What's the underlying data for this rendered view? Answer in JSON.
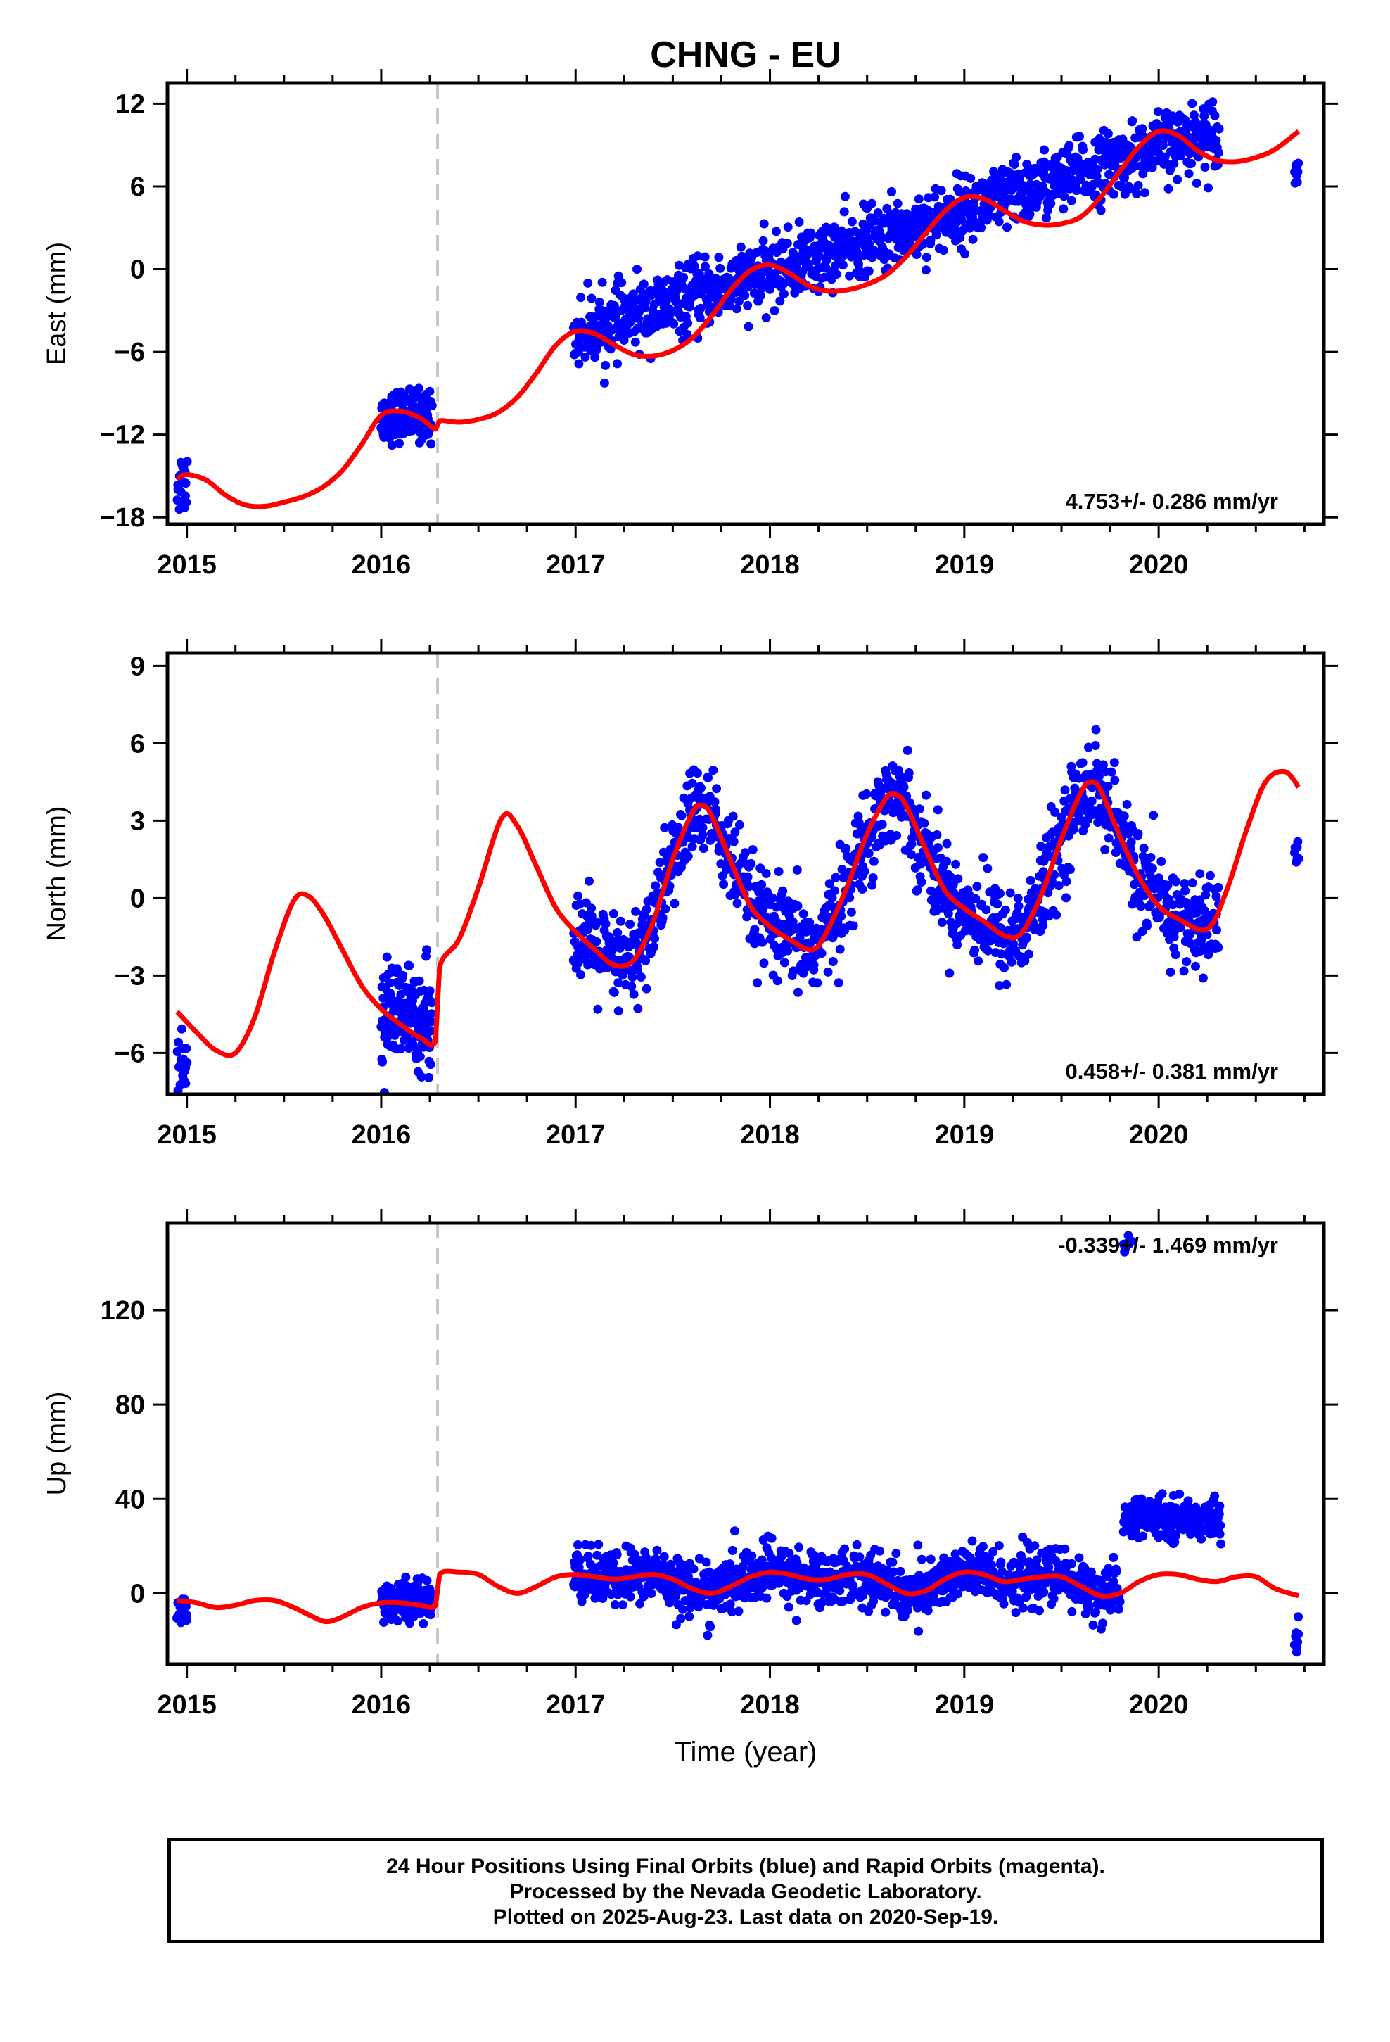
{
  "title": "CHNG - EU",
  "colors": {
    "final": "#0000ff",
    "model": "#ff0000",
    "offset": "#c8c8c8"
  },
  "chart_data": [
    {
      "type": "scatter",
      "title": "CHNG - EU",
      "xlabel": "",
      "ylabel": "East (mm)",
      "xlim": [
        2014.9,
        2020.85
      ],
      "ylim": [
        -18.5,
        13.5
      ],
      "xticks": [
        2015,
        2016,
        2017,
        2018,
        2019,
        2020
      ],
      "yticks": [
        -18,
        -12,
        -6,
        0,
        6,
        12
      ],
      "rate_label": "4.753+/- 0.286 mm/yr",
      "offset_epoch": 2016.29,
      "segments": [
        {
          "start": 2014.95,
          "end": 2015.0,
          "base": -15.5,
          "trend": 0,
          "noise": 1.2,
          "count": 20
        },
        {
          "start": 2016.0,
          "end": 2016.26,
          "base": -10.6,
          "trend": 0,
          "noise": 0.9,
          "count": 150
        },
        {
          "start": 2016.99,
          "end": 2020.31,
          "base": -4.8,
          "trend": 4.5,
          "noise": 1.2,
          "count": 1300
        },
        {
          "start": 2020.7,
          "end": 2020.72,
          "base": 7.0,
          "trend": 0,
          "noise": 0.6,
          "count": 8
        }
      ],
      "model": {
        "x": [
          2014.95,
          2015.0,
          2015.1,
          2015.2,
          2015.3,
          2015.4,
          2015.5,
          2015.6,
          2015.7,
          2015.8,
          2015.9,
          2016.0,
          2016.1,
          2016.2,
          2016.28,
          2016.3,
          2016.4,
          2016.5,
          2016.6,
          2016.7,
          2016.8,
          2016.9,
          2017.0,
          2017.1,
          2017.2,
          2017.3,
          2017.4,
          2017.5,
          2017.6,
          2017.7,
          2017.8,
          2017.9,
          2018.0,
          2018.1,
          2018.2,
          2018.3,
          2018.4,
          2018.5,
          2018.6,
          2018.7,
          2018.8,
          2018.9,
          2019.0,
          2019.1,
          2019.2,
          2019.3,
          2019.4,
          2019.5,
          2019.6,
          2019.7,
          2019.8,
          2019.9,
          2020.0,
          2020.1,
          2020.2,
          2020.3,
          2020.4,
          2020.5,
          2020.6,
          2020.72
        ],
        "y": [
          -15.2,
          -14.9,
          -15.3,
          -16.4,
          -17.1,
          -17.2,
          -16.9,
          -16.5,
          -15.8,
          -14.6,
          -12.7,
          -10.6,
          -10.3,
          -10.8,
          -11.6,
          -11.0,
          -11.1,
          -10.9,
          -10.4,
          -9.3,
          -7.5,
          -5.5,
          -4.5,
          -4.7,
          -5.5,
          -6.2,
          -6.3,
          -5.9,
          -5.0,
          -3.4,
          -1.5,
          -0.1,
          0.3,
          -0.3,
          -1.2,
          -1.6,
          -1.5,
          -1.1,
          -0.4,
          0.9,
          2.6,
          4.2,
          5.2,
          5.1,
          4.3,
          3.5,
          3.2,
          3.3,
          3.8,
          5.2,
          7.1,
          8.9,
          10.0,
          9.7,
          8.6,
          7.9,
          7.8,
          8.1,
          8.7,
          10.0
        ]
      }
    },
    {
      "type": "scatter",
      "title": "",
      "xlabel": "",
      "ylabel": "North (mm)",
      "xlim": [
        2014.9,
        2020.85
      ],
      "ylim": [
        -7.6,
        9.5
      ],
      "xticks": [
        2015,
        2016,
        2017,
        2018,
        2019,
        2020
      ],
      "yticks": [
        -6,
        -3,
        0,
        3,
        6,
        9
      ],
      "rate_label": "0.458+/- 0.381 mm/yr",
      "offset_epoch": 2016.29,
      "segments": [
        {
          "start": 2014.95,
          "end": 2015.0,
          "base": -6.4,
          "trend": 0,
          "noise": 0.7,
          "count": 20
        },
        {
          "start": 2016.0,
          "end": 2016.26,
          "base": -4.6,
          "trend": 0,
          "noise": 1.0,
          "count": 150
        },
        {
          "start": 2016.99,
          "end": 2020.31,
          "base": 0,
          "trend": 0,
          "noise": 0.9,
          "count": 1300,
          "follow_model": true
        },
        {
          "start": 2020.7,
          "end": 2020.72,
          "base": 1.8,
          "trend": 0,
          "noise": 0.3,
          "count": 8
        }
      ],
      "model": {
        "x": [
          2014.95,
          2015.05,
          2015.15,
          2015.25,
          2015.35,
          2015.45,
          2015.55,
          2015.62,
          2015.7,
          2015.8,
          2015.9,
          2016.0,
          2016.1,
          2016.2,
          2016.28,
          2016.3,
          2016.4,
          2016.5,
          2016.62,
          2016.7,
          2016.8,
          2016.9,
          2017.0,
          2017.1,
          2017.2,
          2017.3,
          2017.4,
          2017.5,
          2017.6,
          2017.65,
          2017.7,
          2017.8,
          2017.9,
          2018.0,
          2018.1,
          2018.22,
          2018.3,
          2018.4,
          2018.5,
          2018.6,
          2018.65,
          2018.7,
          2018.8,
          2018.9,
          2019.0,
          2019.1,
          2019.22,
          2019.3,
          2019.4,
          2019.5,
          2019.6,
          2019.65,
          2019.7,
          2019.8,
          2019.9,
          2020.0,
          2020.1,
          2020.25,
          2020.35,
          2020.45,
          2020.55,
          2020.65,
          2020.72
        ],
        "y": [
          -4.4,
          -5.2,
          -5.9,
          -6.0,
          -4.6,
          -2.1,
          -0.1,
          0.1,
          -0.6,
          -2.0,
          -3.4,
          -4.3,
          -4.9,
          -5.4,
          -5.5,
          -2.7,
          -1.6,
          0.4,
          3.1,
          2.8,
          1.2,
          -0.4,
          -1.3,
          -2.0,
          -2.6,
          -2.4,
          -0.9,
          1.5,
          3.3,
          3.6,
          3.2,
          1.4,
          -0.3,
          -1.1,
          -1.6,
          -2.0,
          -1.2,
          0.5,
          2.5,
          3.9,
          4.0,
          3.6,
          1.9,
          0.3,
          -0.4,
          -0.9,
          -1.5,
          -1.3,
          0.2,
          2.3,
          4.1,
          4.5,
          4.2,
          2.4,
          0.8,
          -0.3,
          -0.8,
          -1.2,
          0.3,
          2.6,
          4.5,
          4.9,
          4.3
        ]
      }
    },
    {
      "type": "scatter",
      "title": "",
      "xlabel": "Time (year)",
      "ylabel": "Up (mm)",
      "xlim": [
        2014.9,
        2020.85
      ],
      "ylim": [
        -30,
        157
      ],
      "xticks": [
        2015,
        2016,
        2017,
        2018,
        2019,
        2020
      ],
      "yticks": [
        0,
        40,
        80,
        120
      ],
      "rate_label": "-0.339+/- 1.469 mm/yr",
      "offset_epoch": 2016.29,
      "segments": [
        {
          "start": 2014.95,
          "end": 2015.0,
          "base": -7.0,
          "trend": 0,
          "noise": 4.0,
          "count": 20
        },
        {
          "start": 2016.0,
          "end": 2016.26,
          "base": -3.0,
          "trend": 0,
          "noise": 4.0,
          "count": 150
        },
        {
          "start": 2016.99,
          "end": 2019.8,
          "base": 0,
          "trend": 0,
          "noise": 6.0,
          "count": 1100,
          "follow_model": true
        },
        {
          "start": 2019.82,
          "end": 2019.86,
          "base": 147,
          "trend": 0,
          "noise": 2.0,
          "count": 8
        },
        {
          "start": 2019.82,
          "end": 2020.32,
          "base": 32,
          "trend": 0,
          "noise": 4.0,
          "count": 220
        },
        {
          "start": 2020.7,
          "end": 2020.72,
          "base": -21,
          "trend": 0,
          "noise": 4.0,
          "count": 8
        }
      ],
      "model": {
        "x": [
          2014.95,
          2015.05,
          2015.15,
          2015.25,
          2015.35,
          2015.45,
          2015.55,
          2015.65,
          2015.72,
          2015.8,
          2015.9,
          2016.0,
          2016.1,
          2016.2,
          2016.28,
          2016.3,
          2016.4,
          2016.5,
          2016.6,
          2016.7,
          2016.8,
          2016.9,
          2017.0,
          2017.1,
          2017.2,
          2017.3,
          2017.4,
          2017.5,
          2017.6,
          2017.7,
          2017.8,
          2017.9,
          2018.0,
          2018.1,
          2018.2,
          2018.3,
          2018.4,
          2018.5,
          2018.6,
          2018.7,
          2018.8,
          2018.9,
          2019.0,
          2019.1,
          2019.2,
          2019.3,
          2019.4,
          2019.5,
          2019.6,
          2019.7,
          2019.8,
          2019.9,
          2020.0,
          2020.1,
          2020.2,
          2020.3,
          2020.4,
          2020.5,
          2020.6,
          2020.72
        ],
        "y": [
          -3,
          -4,
          -6,
          -5,
          -3,
          -3,
          -6,
          -10,
          -12,
          -10,
          -6,
          -4,
          -4,
          -5,
          -5,
          8,
          9,
          8,
          3,
          0,
          3,
          7,
          8,
          7,
          6,
          7,
          8,
          6,
          2,
          0,
          3,
          7,
          9,
          8,
          6,
          6,
          8,
          8,
          4,
          0,
          1,
          6,
          9,
          8,
          5,
          6,
          7,
          7,
          3,
          -1,
          0,
          5,
          8,
          8,
          6,
          5,
          7,
          7,
          2,
          -1
        ]
      }
    }
  ],
  "footer": {
    "line1": "24 Hour Positions Using Final Orbits (blue) and Rapid Orbits (magenta).",
    "line2": "Processed by the Nevada Geodetic Laboratory.",
    "line3": "Plotted on 2025-Aug-23. Last data on 2020-Sep-19."
  }
}
